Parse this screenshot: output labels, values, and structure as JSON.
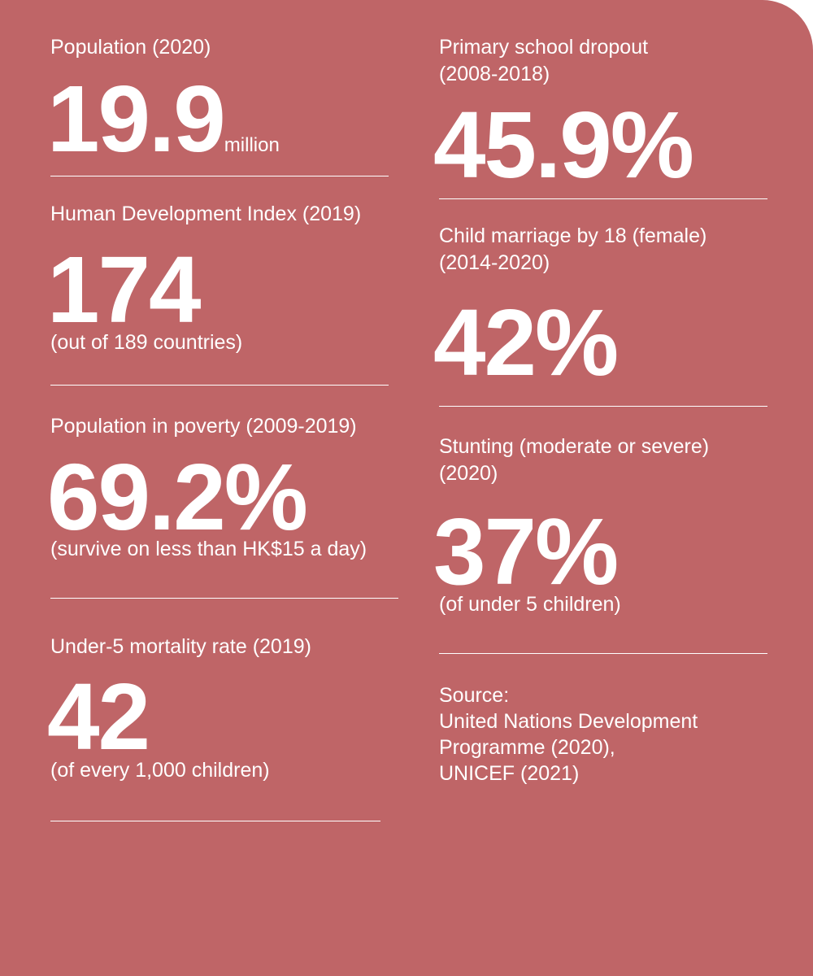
{
  "left": [
    {
      "label": "Population (2020)",
      "value": "19.9",
      "unit": "million",
      "note": ""
    },
    {
      "label": "Human Development Index (2019)",
      "value": "174",
      "unit": "",
      "note": "(out of 189 countries)"
    },
    {
      "label": "Population in poverty (2009-2019)",
      "value": "69.2%",
      "unit": "",
      "note": "(survive on less than HK$15 a day)"
    },
    {
      "label": "Under-5 mortality rate (2019)",
      "value": "42",
      "unit": "",
      "note": "(of every 1,000 children)"
    }
  ],
  "right": [
    {
      "label_line1": "Primary school dropout",
      "label_line2": "(2008-2018)",
      "value": "45.9%",
      "note": ""
    },
    {
      "label_line1": "Child marriage by 18 (female)",
      "label_line2": "(2014-2020)",
      "value": "42%",
      "note": ""
    },
    {
      "label_line1": "Stunting (moderate or severe)",
      "label_line2": "(2020)",
      "value": "37%",
      "note": "(of under 5 children)"
    }
  ],
  "source": {
    "heading": "Source:",
    "line1": "United Nations Development",
    "line2": "Programme (2020),",
    "line3": "UNICEF (2021)"
  },
  "colors": {
    "background": "#bf6567",
    "text": "#ffffff"
  }
}
